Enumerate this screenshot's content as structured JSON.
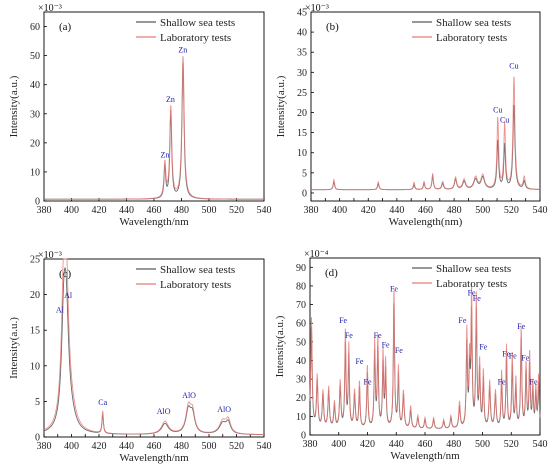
{
  "figure": {
    "colors": {
      "shallow": "#5a5a5a",
      "laboratory": "#e87d78",
      "peak_label": "#1a1aa8"
    }
  },
  "chart_data": [
    {
      "type": "line",
      "panel_label": "(a)",
      "scale_label": "×10⁻³",
      "xlabel": "Wavelength/nm",
      "ylabel": "Intensity(a.u.)",
      "xlim": [
        380,
        540
      ],
      "ylim": [
        0,
        65
      ],
      "xticks": [
        380,
        400,
        420,
        440,
        460,
        480,
        500,
        520,
        540
      ],
      "yticks": [
        0,
        10,
        20,
        30,
        40,
        50,
        60
      ],
      "legend": {
        "position": "top-right",
        "entries": [
          "Shallow sea tests",
          "Laboratory tests"
        ]
      },
      "baseline": 0.6,
      "series": [
        {
          "name": "Shallow sea tests",
          "peaks": [
            [
              467.9,
              11,
              0.7
            ],
            [
              472.2,
              30,
              0.8
            ],
            [
              481.1,
              47,
              0.9
            ]
          ]
        },
        {
          "name": "Laboratory tests",
          "peaks": [
            [
              467.9,
              12,
              0.8
            ],
            [
              472.2,
              31.5,
              0.9
            ],
            [
              481.1,
              49,
              1.0
            ]
          ]
        }
      ],
      "annotations": [
        {
          "text": "Zn",
          "x": 468,
          "y": 15
        },
        {
          "text": "Zn",
          "x": 472,
          "y": 34
        },
        {
          "text": "Zn",
          "x": 481,
          "y": 51
        }
      ]
    },
    {
      "type": "line",
      "panel_label": "(b)",
      "scale_label": "×10⁻³",
      "xlabel": "Wavelength(nm)",
      "ylabel": "Intensity(a.u.)",
      "xlim": [
        380,
        540
      ],
      "ylim": [
        -2,
        45
      ],
      "xticks": [
        380,
        390,
        400,
        410,
        420,
        430,
        440,
        450,
        460,
        470,
        480,
        490,
        500,
        510,
        520,
        530,
        540
      ],
      "yticks": [
        0,
        5,
        10,
        15,
        20,
        25,
        30,
        35,
        40,
        45
      ],
      "legend": {
        "position": "top-right",
        "entries": [
          "Shallow sea tests",
          "Laboratory tests"
        ]
      },
      "baseline": 0.8,
      "series": [
        {
          "name": "Shallow sea tests",
          "peaks": [
            [
              396,
              2,
              0.6
            ],
            [
              427,
              1.5,
              0.6
            ],
            [
              452,
              1.2,
              0.6
            ],
            [
              459,
              1.6,
              0.6
            ],
            [
              465,
              3.5,
              0.6
            ],
            [
              472,
              1.5,
              0.8
            ],
            [
              481,
              2.5,
              0.9
            ],
            [
              487,
              2,
              1.2
            ],
            [
              495,
              2.5,
              1.5
            ],
            [
              500,
              3,
              1.5
            ],
            [
              510.5,
              12,
              0.7
            ],
            [
              515.3,
              11,
              0.7
            ],
            [
              521.8,
              21,
              0.8
            ],
            [
              529,
              2,
              0.8
            ]
          ]
        },
        {
          "name": "Laboratory tests",
          "peaks": [
            [
              396,
              2.5,
              0.6
            ],
            [
              427,
              2,
              0.6
            ],
            [
              452,
              1.8,
              0.6
            ],
            [
              459,
              2,
              0.6
            ],
            [
              465,
              4,
              0.6
            ],
            [
              472,
              2,
              0.8
            ],
            [
              481,
              3,
              0.9
            ],
            [
              487,
              2.5,
              1.2
            ],
            [
              495,
              3,
              1.5
            ],
            [
              500,
              3.5,
              1.5
            ],
            [
              510.5,
              17.5,
              0.7
            ],
            [
              515.3,
              16,
              0.7
            ],
            [
              521.8,
              28,
              0.8
            ],
            [
              529,
              3,
              0.8
            ]
          ]
        }
      ],
      "annotations": [
        {
          "text": "Cu",
          "x": 510.5,
          "y": 20
        },
        {
          "text": "Cu",
          "x": 515.3,
          "y": 17.5
        },
        {
          "text": "Cu",
          "x": 521.8,
          "y": 31
        }
      ]
    },
    {
      "type": "line",
      "panel_label": "(c)",
      "scale_label": "×10⁻³",
      "xlabel": "Wavelength/nm",
      "ylabel": "Intensity(a.u.)",
      "xlim": [
        380,
        540
      ],
      "ylim": [
        0,
        25
      ],
      "xticks": [
        380,
        390,
        400,
        410,
        420,
        430,
        440,
        450,
        460,
        470,
        480,
        490,
        500,
        510,
        520,
        530,
        540
      ],
      "yticks": [
        0,
        5,
        10,
        15,
        20,
        25
      ],
      "legend": {
        "position": "top-right",
        "entries": [
          "Shallow sea tests",
          "Laboratory tests"
        ]
      },
      "baseline": 0.3,
      "series": [
        {
          "name": "Shallow sea tests",
          "peaks": [
            [
              394.4,
              13,
              2.0
            ],
            [
              396.2,
              14,
              2.2
            ],
            [
              400,
              1.5,
              4
            ],
            [
              422.7,
              2.8,
              0.6
            ],
            [
              468,
              1.5,
              3
            ],
            [
              485,
              3.2,
              2.2
            ],
            [
              488,
              2.5,
              2.0
            ],
            [
              510,
              1.5,
              3
            ],
            [
              514,
              1.5,
              2
            ]
          ]
        },
        {
          "name": "Laboratory tests",
          "peaks": [
            [
              394.4,
              16.5,
              2.0
            ],
            [
              396.2,
              17.5,
              2.2
            ],
            [
              400,
              2,
              4
            ],
            [
              422.7,
              3.1,
              0.6
            ],
            [
              468,
              1.8,
              3
            ],
            [
              485,
              3.6,
              2.2
            ],
            [
              488,
              2.8,
              2.0
            ],
            [
              510,
              1.8,
              3
            ],
            [
              514,
              1.8,
              2
            ]
          ]
        }
      ],
      "annotations": [
        {
          "text": "Al",
          "x": 391.5,
          "y": 17.5
        },
        {
          "text": "Al",
          "x": 397.5,
          "y": 19.5
        },
        {
          "text": "Ca",
          "x": 422.7,
          "y": 4.5
        },
        {
          "text": "AlO",
          "x": 467,
          "y": 3.2
        },
        {
          "text": "AlO",
          "x": 485.5,
          "y": 5.5
        },
        {
          "text": "AlO",
          "x": 511,
          "y": 3.5
        }
      ]
    },
    {
      "type": "line",
      "panel_label": "(d)",
      "scale_label": "×10⁻⁴",
      "xlabel": "Wavelength/nm",
      "ylabel": "Intensity(a.u.)",
      "xlim": [
        380,
        540
      ],
      "ylim": [
        0,
        95
      ],
      "xticks": [
        380,
        400,
        420,
        440,
        460,
        480,
        500,
        520,
        540
      ],
      "yticks": [
        0,
        10,
        20,
        30,
        40,
        50,
        60,
        70,
        80,
        90
      ],
      "legend": {
        "position": "top-right",
        "entries": [
          "Shallow sea tests",
          "Laboratory tests"
        ]
      },
      "baseline": 3,
      "series": [
        {
          "name": "Shallow sea tests",
          "peaks": [
            [
              381,
              55,
              0.6
            ],
            [
              385,
              25,
              0.6
            ],
            [
              389,
              18,
              0.6
            ],
            [
              393,
              20,
              0.6
            ],
            [
              397,
              12,
              0.6
            ],
            [
              401,
              22,
              0.6
            ],
            [
              404.6,
              45,
              0.5
            ],
            [
              407,
              38,
              0.5
            ],
            [
              411,
              18,
              0.6
            ],
            [
              414.4,
              22,
              0.5
            ],
            [
              419.9,
              30,
              0.5
            ],
            [
              425,
              40,
              0.5
            ],
            [
              427.2,
              42,
              0.5
            ],
            [
              430.8,
              34,
              0.5
            ],
            [
              432.6,
              30,
              0.5
            ],
            [
              438.4,
              68,
              0.5
            ],
            [
              441.5,
              28,
              0.5
            ],
            [
              445,
              18,
              0.6
            ],
            [
              450,
              10,
              0.6
            ],
            [
              455,
              6,
              0.6
            ],
            [
              460,
              5,
              0.6
            ],
            [
              466,
              5,
              0.6
            ],
            [
              473,
              4,
              0.6
            ],
            [
              478,
              6,
              0.6
            ],
            [
              484,
              12,
              0.6
            ],
            [
              489.1,
              45,
              0.5
            ],
            [
              491,
              30,
              0.5
            ],
            [
              492.4,
              60,
              0.5
            ],
            [
              495.7,
              62,
              0.5
            ],
            [
              498,
              30,
              0.5
            ],
            [
              500.6,
              26,
              0.5
            ],
            [
              505,
              22,
              0.6
            ],
            [
              509,
              18,
              0.6
            ],
            [
              513.3,
              26,
              0.5
            ],
            [
              516.7,
              38,
              0.5
            ],
            [
              520.7,
              34,
              0.5
            ],
            [
              523.2,
              22,
              0.5
            ],
            [
              526.9,
              48,
              0.5
            ],
            [
              530.3,
              30,
              0.5
            ],
            [
              532.8,
              34,
              0.5
            ],
            [
              535,
              20,
              0.5
            ],
            [
              537.1,
              18,
              0.5
            ],
            [
              539,
              24,
              0.5
            ]
          ]
        },
        {
          "name": "Laboratory tests",
          "peaks": [
            [
              381,
              60,
              0.6
            ],
            [
              385,
              28,
              0.6
            ],
            [
              389,
              20,
              0.6
            ],
            [
              393,
              22,
              0.6
            ],
            [
              397,
              14,
              0.6
            ],
            [
              401,
              25,
              0.6
            ],
            [
              404.6,
              52,
              0.5
            ],
            [
              407,
              44,
              0.5
            ],
            [
              411,
              20,
              0.6
            ],
            [
              414.4,
              25,
              0.5
            ],
            [
              419.9,
              34,
              0.5
            ],
            [
              425,
              46,
              0.5
            ],
            [
              427.2,
              48,
              0.5
            ],
            [
              430.8,
              40,
              0.5
            ],
            [
              432.6,
              35,
              0.5
            ],
            [
              438.4,
              75,
              0.5
            ],
            [
              441.5,
              32,
              0.5
            ],
            [
              445,
              20,
              0.6
            ],
            [
              450,
              12,
              0.6
            ],
            [
              455,
              7,
              0.6
            ],
            [
              460,
              6,
              0.6
            ],
            [
              466,
              6,
              0.6
            ],
            [
              473,
              5,
              0.6
            ],
            [
              478,
              7,
              0.6
            ],
            [
              484,
              14,
              0.6
            ],
            [
              489.1,
              52,
              0.5
            ],
            [
              491,
              34,
              0.5
            ],
            [
              492.4,
              72,
              0.5
            ],
            [
              495.7,
              70,
              0.5
            ],
            [
              498,
              34,
              0.5
            ],
            [
              500.6,
              30,
              0.5
            ],
            [
              505,
              25,
              0.6
            ],
            [
              509,
              20,
              0.6
            ],
            [
              513.3,
              30,
              0.5
            ],
            [
              516.7,
              44,
              0.5
            ],
            [
              520.7,
              40,
              0.5
            ],
            [
              523.2,
              26,
              0.5
            ],
            [
              526.9,
              54,
              0.5
            ],
            [
              530.3,
              34,
              0.5
            ],
            [
              532.8,
              40,
              0.5
            ],
            [
              535,
              23,
              0.5
            ],
            [
              537.1,
              21,
              0.5
            ],
            [
              539,
              28,
              0.5
            ]
          ]
        }
      ],
      "annotations": [
        {
          "text": "Fe",
          "x": 403,
          "y": 60
        },
        {
          "text": "Fe",
          "x": 407,
          "y": 52
        },
        {
          "text": "Fe",
          "x": 414.4,
          "y": 38
        },
        {
          "text": "Fe",
          "x": 420,
          "y": 27
        },
        {
          "text": "Fe",
          "x": 427,
          "y": 52
        },
        {
          "text": "Fe",
          "x": 432.6,
          "y": 47
        },
        {
          "text": "Fe",
          "x": 438.4,
          "y": 77
        },
        {
          "text": "Fe",
          "x": 441.8,
          "y": 44
        },
        {
          "text": "Fe",
          "x": 486,
          "y": 60
        },
        {
          "text": "Fe",
          "x": 492.4,
          "y": 75
        },
        {
          "text": "Fe",
          "x": 496,
          "y": 72
        },
        {
          "text": "Fe",
          "x": 500.6,
          "y": 46
        },
        {
          "text": "Fe",
          "x": 513.3,
          "y": 27
        },
        {
          "text": "Fe",
          "x": 516.5,
          "y": 42
        },
        {
          "text": "Fe",
          "x": 521,
          "y": 41
        },
        {
          "text": "Fe",
          "x": 526.9,
          "y": 57
        },
        {
          "text": "Fe",
          "x": 529.8,
          "y": 40
        },
        {
          "text": "Fe",
          "x": 535.5,
          "y": 27
        }
      ]
    }
  ]
}
